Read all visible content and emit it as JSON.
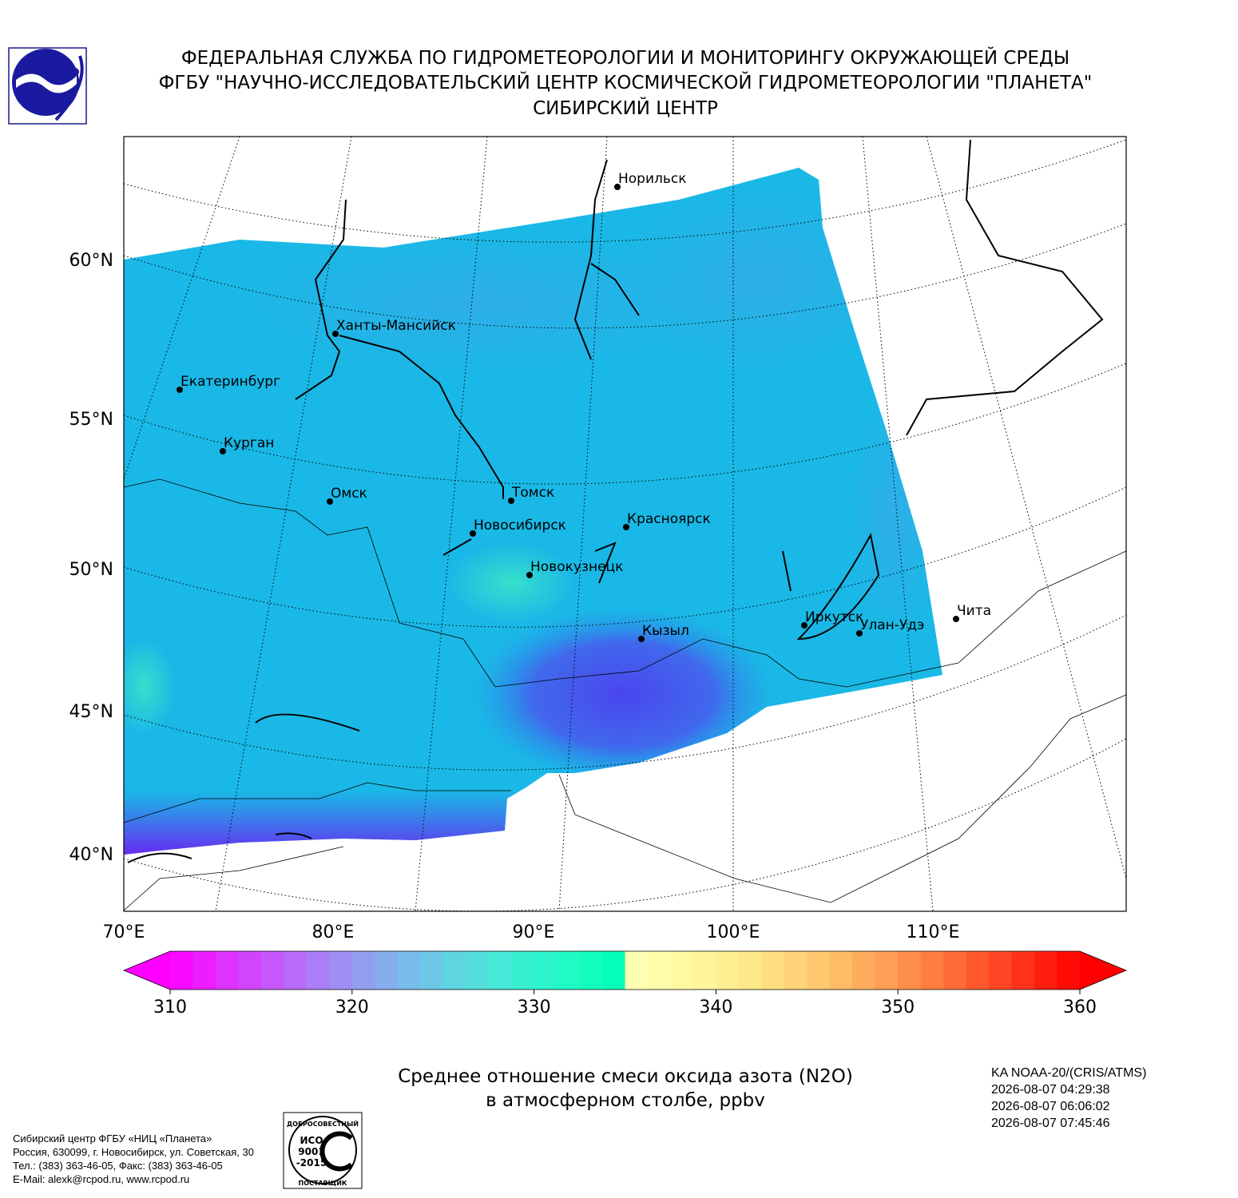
{
  "header": {
    "lines": [
      "ФЕДЕРАЛЬНАЯ СЛУЖБА ПО ГИДРОМЕТЕОРОЛОГИИ И МОНИТОРИНГУ ОКРУЖАЮЩЕЙ СРЕДЫ",
      "ФГБУ \"НАУЧНО-ИССЛЕДОВАТЕЛЬСКИЙ ЦЕНТР КОСМИЧЕСКОЙ ГИДРОМЕТЕОРОЛОГИИ \"ПЛАНЕТА\"",
      "СИБИРСКИЙ ЦЕНТР"
    ]
  },
  "map": {
    "cities": [
      "Норильск",
      "Ханты-Мансийск",
      "Екатеринбург",
      "Курган",
      "Омск",
      "Томск",
      "Новосибирск",
      "Красноярск",
      "Новокузнецк",
      "Кызыл",
      "Иркутск",
      "Улан-Удэ",
      "Чита"
    ],
    "lat_labels": [
      "60°N",
      "55°N",
      "50°N",
      "45°N",
      "40°N"
    ],
    "lon_labels": [
      "70°E",
      "80°E",
      "90°E",
      "100°E",
      "110°E"
    ]
  },
  "colorbar": {
    "lim": [
      310,
      360
    ],
    "ticks": [
      310,
      320,
      330,
      340,
      350,
      360
    ]
  },
  "caption": {
    "lines": [
      "Среднее отношение смеси оксида азота (N2O)",
      "в атмосферном столбе, ppbv"
    ]
  },
  "satellite": {
    "lines": [
      "KA NOAA-20/(CRIS/ATMS)",
      "2026-08-07 04:29:38",
      "2026-08-07 06:06:02",
      "2026-08-07 07:45:46"
    ]
  },
  "footer": {
    "lines": [
      "Сибирский центр ФГБУ «НИЦ «Планета»",
      "Россия, 630099, г. Новосибирск, ул. Советская, 30",
      "Тел.: (383) 363-46-05, Факс: (383) 363-46-05",
      "E-Mail: alexk@rcpod.ru, www.rcpod.ru"
    ]
  },
  "logo": {
    "iso": [
      "ДОБРОСОВЕСТНЫЙ",
      "ИСО",
      "9001",
      "-2015",
      "ПОСТАВЩИК"
    ]
  }
}
